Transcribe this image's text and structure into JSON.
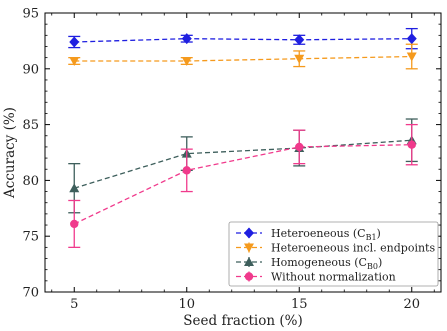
{
  "chart_data": {
    "type": "line",
    "title": "",
    "xlabel": "Seed fraction (%)",
    "ylabel": "Accuracy (%)",
    "x": [
      5,
      10,
      15,
      20
    ],
    "xticks": [
      "5",
      "10",
      "15",
      "20"
    ],
    "yticks": [
      "70",
      "75",
      "80",
      "85",
      "90",
      "95"
    ],
    "xlim": [
      3.7,
      21.3
    ],
    "ylim": [
      70,
      95
    ],
    "grid": false,
    "legend_position": "bottom-right",
    "series": [
      {
        "name": "Heteroeneous (C",
        "subscript": "B1",
        "name_suffix": ")",
        "color": "#1f1fe0",
        "marker": "diamond",
        "values": [
          92.4,
          92.7,
          92.6,
          92.7
        ],
        "errors": [
          0.5,
          0.3,
          0.4,
          0.9
        ]
      },
      {
        "name": "Heteroeneous incl. endpoints",
        "color": "#f59a1d",
        "marker": "triangle-down",
        "values": [
          90.7,
          90.7,
          90.9,
          91.1
        ],
        "errors": [
          0.3,
          0.3,
          0.7,
          1.1
        ]
      },
      {
        "name": "Homogeneous (C",
        "subscript": "B0",
        "name_suffix": ")",
        "color": "#3e5f5c",
        "marker": "triangle-up",
        "values": [
          79.3,
          82.4,
          82.9,
          83.6
        ],
        "errors": [
          2.2,
          1.5,
          1.6,
          1.9
        ]
      },
      {
        "name": "Without normalization",
        "color": "#f03a8c",
        "marker": "circle",
        "values": [
          76.1,
          80.9,
          83.0,
          83.2
        ],
        "errors": [
          2.1,
          1.9,
          1.5,
          1.8
        ]
      }
    ]
  }
}
